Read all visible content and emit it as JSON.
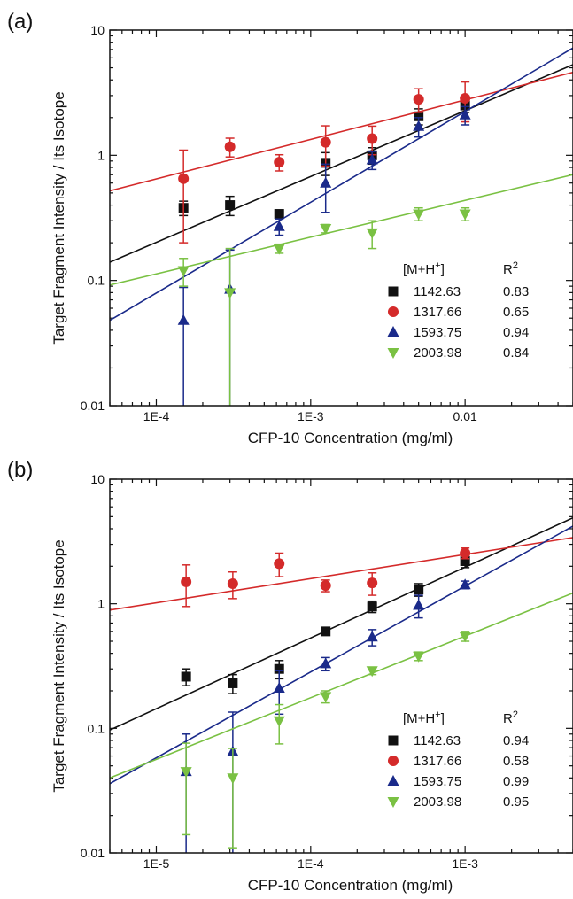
{
  "chart_data": [
    {
      "panel": "(a)",
      "type": "scatter",
      "xscale": "log",
      "yscale": "log",
      "xlabel": "CFP-10 Concentration (mg/ml)",
      "ylabel": "Target Fragment Intensity / Its Isotope",
      "xlim": [
        5e-05,
        0.05
      ],
      "ylim": [
        0.01,
        10
      ],
      "xticks": [
        0.0001,
        0.001,
        0.01
      ],
      "xtick_labels": [
        "1E-4",
        "1E-3",
        "0.01"
      ],
      "yticks": [
        0.01,
        0.1,
        1,
        10
      ],
      "ytick_labels": [
        "0.01",
        "0.1",
        "1",
        "10"
      ],
      "legend": {
        "position": "bottom-right",
        "header_mass": "[M+H",
        "header_mass_sup": "+",
        "header_mass_close": "]",
        "header_r": "R",
        "header_r_sup": "2"
      },
      "series": [
        {
          "name": "1142.63",
          "r2": "0.83",
          "color": "#111111",
          "marker": "square",
          "x": [
            0.00015,
            0.0003,
            0.000625,
            0.00125,
            0.0025,
            0.005,
            0.01
          ],
          "y": [
            0.38,
            0.4,
            0.34,
            0.87,
            1.0,
            2.05,
            2.5
          ],
          "err": [
            0.05,
            0.07,
            0.02,
            0.18,
            0.15,
            0.3,
            0.3
          ],
          "fit": [
            [
              5e-05,
              0.14
            ],
            [
              0.05,
              5.3
            ]
          ]
        },
        {
          "name": "1317.66",
          "r2": "0.65",
          "color": "#d42a2a",
          "marker": "circle",
          "x": [
            0.00015,
            0.0003,
            0.000625,
            0.00125,
            0.0025,
            0.005,
            0.01
          ],
          "y": [
            0.65,
            1.17,
            0.88,
            1.27,
            1.36,
            2.8,
            2.85
          ],
          "err": [
            0.45,
            0.2,
            0.13,
            0.45,
            0.35,
            0.6,
            1.0
          ],
          "fit": [
            [
              5e-05,
              0.52
            ],
            [
              0.05,
              4.6
            ]
          ]
        },
        {
          "name": "1593.75",
          "r2": "0.94",
          "color": "#1a2a8a",
          "marker": "triangle-up",
          "x": [
            0.00015,
            0.0003,
            0.000625,
            0.00125,
            0.0025,
            0.005,
            0.01
          ],
          "y": [
            0.048,
            0.085,
            0.27,
            0.6,
            0.92,
            1.7,
            2.1
          ],
          "err": [
            0.04,
            0.09,
            0.04,
            0.25,
            0.15,
            0.3,
            0.35
          ],
          "fit": [
            [
              5e-05,
              0.048
            ],
            [
              0.05,
              7.2
            ]
          ]
        },
        {
          "name": "2003.98",
          "r2": "0.84",
          "color": "#7ac143",
          "marker": "triangle-down",
          "x": [
            0.00015,
            0.0003,
            0.000625,
            0.00125,
            0.0025,
            0.005,
            0.01
          ],
          "y": [
            0.12,
            0.08,
            0.18,
            0.26,
            0.24,
            0.34,
            0.34
          ],
          "err": [
            0.03,
            0.1,
            0.015,
            0.02,
            0.06,
            0.04,
            0.04
          ],
          "fit": [
            [
              5e-05,
              0.092
            ],
            [
              0.05,
              0.7
            ]
          ]
        }
      ]
    },
    {
      "panel": "(b)",
      "type": "scatter",
      "xscale": "log",
      "yscale": "log",
      "xlabel": "CFP-10 Concentration (mg/ml)",
      "ylabel": "Target Fragment Intensity / Its Isotope",
      "xlim": [
        5e-06,
        0.005
      ],
      "ylim": [
        0.01,
        10
      ],
      "xticks": [
        1e-05,
        0.0001,
        0.001
      ],
      "xtick_labels": [
        "1E-5",
        "1E-4",
        "1E-3"
      ],
      "yticks": [
        0.01,
        0.1,
        1,
        10
      ],
      "ytick_labels": [
        "0.01",
        "0.1",
        "1",
        "10"
      ],
      "legend": {
        "position": "bottom-right",
        "header_mass": "[M+H",
        "header_mass_sup": "+",
        "header_mass_close": "]",
        "header_r": "R",
        "header_r_sup": "2"
      },
      "series": [
        {
          "name": "1142.63",
          "r2": "0.94",
          "color": "#111111",
          "marker": "square",
          "x": [
            1.56e-05,
            3.13e-05,
            6.25e-05,
            0.000125,
            0.00025,
            0.0005,
            0.001
          ],
          "y": [
            0.26,
            0.23,
            0.3,
            0.6,
            0.95,
            1.3,
            2.2
          ],
          "err": [
            0.04,
            0.04,
            0.05,
            0.03,
            0.1,
            0.15,
            0.25
          ],
          "fit": [
            [
              5e-06,
              0.097
            ],
            [
              0.005,
              4.9
            ]
          ]
        },
        {
          "name": "1317.66",
          "r2": "0.58",
          "color": "#d42a2a",
          "marker": "circle",
          "x": [
            1.56e-05,
            3.13e-05,
            6.25e-05,
            0.000125,
            0.00025,
            0.0005,
            0.001
          ],
          "y": [
            1.5,
            1.45,
            2.1,
            1.4,
            1.47,
            null,
            2.55
          ],
          "err": [
            0.55,
            0.35,
            0.45,
            0.15,
            0.3,
            null,
            0.25
          ],
          "fit": [
            [
              5e-06,
              0.89
            ],
            [
              0.005,
              3.4
            ]
          ]
        },
        {
          "name": "1593.75",
          "r2": "0.99",
          "color": "#1a2a8a",
          "marker": "triangle-up",
          "x": [
            1.56e-05,
            3.13e-05,
            6.25e-05,
            0.000125,
            0.00025,
            0.0005,
            0.001
          ],
          "y": [
            0.045,
            0.065,
            0.21,
            0.33,
            0.54,
            0.97,
            1.42
          ],
          "err": [
            0.045,
            0.07,
            0.08,
            0.04,
            0.08,
            0.2,
            0.1
          ],
          "fit": [
            [
              5e-06,
              0.036
            ],
            [
              0.005,
              4.2
            ]
          ]
        },
        {
          "name": "2003.98",
          "r2": "0.95",
          "color": "#7ac143",
          "marker": "triangle-down",
          "x": [
            1.56e-05,
            3.13e-05,
            6.25e-05,
            0.000125,
            0.00025,
            0.0005,
            0.001
          ],
          "y": [
            0.045,
            0.04,
            0.115,
            0.18,
            0.29,
            0.38,
            0.55
          ],
          "err": [
            0.031,
            0.029,
            0.04,
            0.02,
            0.02,
            0.03,
            0.05
          ],
          "fit": [
            [
              5e-06,
              0.04
            ],
            [
              0.005,
              1.22
            ]
          ]
        }
      ]
    }
  ]
}
